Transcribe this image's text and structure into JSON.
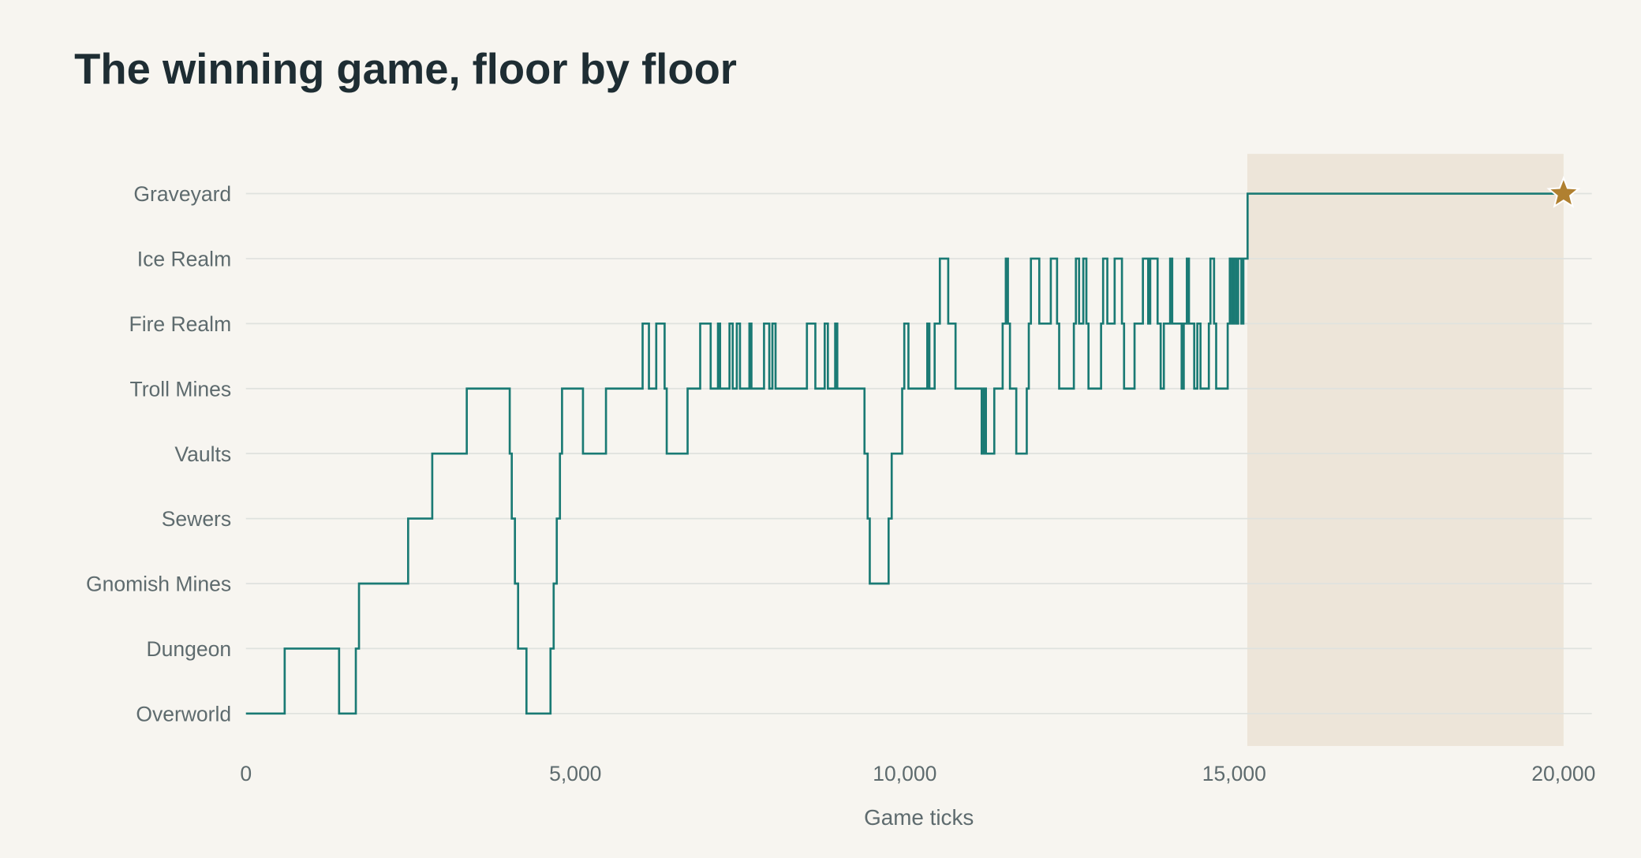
{
  "chart_data": {
    "type": "step",
    "title": "The winning game, floor by floor",
    "x_label": "Game ticks",
    "categories": [
      "Overworld",
      "Dungeon",
      "Gnomish Mines",
      "Sewers",
      "Vaults",
      "Troll Mines",
      "Fire Realm",
      "Ice Realm",
      "Graveyard"
    ],
    "xlim": [
      0,
      20000
    ],
    "xticks": [
      0,
      {
        "value": 5000,
        "label": "5,000"
      },
      {
        "value": 10000,
        "label": "10,000"
      },
      {
        "value": 15000,
        "label": "15,000"
      },
      {
        "value": 20000,
        "label": "20,000"
      }
    ],
    "grid": true,
    "highlight_xlim": [
      15200,
      20000
    ],
    "highlight_color": "#ede5d9",
    "end_marker_color": "#b08030",
    "series": [
      {
        "color": "#1a7a74",
        "x": [
          0,
          588,
          1414,
          1668,
          1716,
          2462,
          2828,
          3352,
          4004,
          4035,
          4083,
          4131,
          4258,
          4623,
          4671,
          4718,
          4766,
          4798,
          5116,
          5465,
          6021,
          6117,
          6228,
          6355,
          6387,
          6704,
          6895,
          7054,
          7165,
          7197,
          7340,
          7388,
          7451,
          7499,
          7642,
          7673,
          7864,
          7944,
          7991,
          8039,
          8515,
          8643,
          8785,
          8833,
          8944,
          8976,
          9389,
          9437,
          9469,
          9755,
          9802,
          9961,
          9993,
          10056,
          10342,
          10374,
          10454,
          10533,
          10660,
          10771,
          11168,
          11200,
          11232,
          11359,
          11486,
          11534,
          11566,
          11597,
          11693,
          11852,
          11883,
          11915,
          12042,
          12217,
          12312,
          12344,
          12567,
          12598,
          12646,
          12710,
          12757,
          12789,
          12980,
          13011,
          13075,
          13186,
          13297,
          13329,
          13488,
          13615,
          13695,
          13726,
          13838,
          13885,
          13933,
          14028,
          14060,
          14203,
          14235,
          14282,
          14314,
          14394,
          14441,
          14489,
          14616,
          14640,
          14695,
          14727,
          14902,
          14934,
          14966,
          14997,
          15029,
          15061,
          15109,
          15140,
          15204,
          20000
        ],
        "values": [
          "Overworld",
          "Dungeon",
          "Overworld",
          "Dungeon",
          "Gnomish Mines",
          "Sewers",
          "Vaults",
          "Troll Mines",
          "Vaults",
          "Sewers",
          "Gnomish Mines",
          "Dungeon",
          "Overworld",
          "Dungeon",
          "Gnomish Mines",
          "Sewers",
          "Vaults",
          "Troll Mines",
          "Vaults",
          "Troll Mines",
          "Fire Realm",
          "Troll Mines",
          "Fire Realm",
          "Troll Mines",
          "Vaults",
          "Troll Mines",
          "Fire Realm",
          "Troll Mines",
          "Fire Realm",
          "Troll Mines",
          "Fire Realm",
          "Troll Mines",
          "Fire Realm",
          "Troll Mines",
          "Fire Realm",
          "Troll Mines",
          "Fire Realm",
          "Troll Mines",
          "Fire Realm",
          "Troll Mines",
          "Fire Realm",
          "Troll Mines",
          "Fire Realm",
          "Troll Mines",
          "Fire Realm",
          "Troll Mines",
          "Vaults",
          "Sewers",
          "Gnomish Mines",
          "Sewers",
          "Vaults",
          "Troll Mines",
          "Fire Realm",
          "Troll Mines",
          "Fire Realm",
          "Troll Mines",
          "Fire Realm",
          "Ice Realm",
          "Fire Realm",
          "Troll Mines",
          "Vaults",
          "Troll Mines",
          "Vaults",
          "Troll Mines",
          "Fire Realm",
          "Ice Realm",
          "Fire Realm",
          "Troll Mines",
          "Vaults",
          "Troll Mines",
          "Fire Realm",
          "Ice Realm",
          "Fire Realm",
          "Ice Realm",
          "Fire Realm",
          "Troll Mines",
          "Fire Realm",
          "Ice Realm",
          "Fire Realm",
          "Ice Realm",
          "Fire Realm",
          "Troll Mines",
          "Fire Realm",
          "Ice Realm",
          "Fire Realm",
          "Ice Realm",
          "Fire Realm",
          "Troll Mines",
          "Fire Realm",
          "Ice Realm",
          "Fire Realm",
          "Ice Realm",
          "Fire Realm",
          "Troll Mines",
          "Fire Realm",
          "Ice Realm",
          "Fire Realm",
          "Troll Mines",
          "Fire Realm",
          "Ice Realm",
          "Fire Realm",
          "Troll Mines",
          "Fire Realm",
          "Troll Mines",
          "Fire Realm",
          "Ice Realm",
          "Fire Realm",
          "Troll Mines",
          "Fire Realm",
          "Ice Realm",
          "Fire Realm",
          "Ice Realm",
          "Fire Realm",
          "Ice Realm",
          "Fire Realm",
          "Ice Realm",
          "Graveyard",
          "Graveyard"
        ]
      }
    ]
  }
}
